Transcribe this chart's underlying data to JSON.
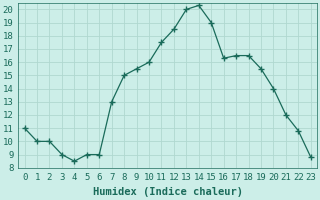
{
  "data_points": [
    [
      0,
      11
    ],
    [
      1,
      10
    ],
    [
      2,
      10
    ],
    [
      3,
      9
    ],
    [
      4,
      8.5
    ],
    [
      5,
      9
    ],
    [
      6,
      9
    ],
    [
      7,
      13
    ],
    [
      8,
      15
    ],
    [
      9,
      15.5
    ],
    [
      10,
      16
    ],
    [
      11,
      17.5
    ],
    [
      12,
      18.5
    ],
    [
      13,
      20
    ],
    [
      14,
      20.3
    ],
    [
      15,
      19
    ],
    [
      16,
      16.3
    ],
    [
      17,
      16.5
    ],
    [
      18,
      16.5
    ],
    [
      19,
      15.5
    ],
    [
      20,
      14
    ],
    [
      21,
      12
    ],
    [
      22,
      10.8
    ],
    [
      23,
      8.8
    ]
  ],
  "line_color": "#1a6b5a",
  "bg_color": "#cceee8",
  "grid_color": "#b0d8d0",
  "xlabel": "Humidex (Indice chaleur)",
  "xlim": [
    -0.5,
    23.5
  ],
  "ylim": [
    8,
    20.5
  ],
  "yticks": [
    8,
    9,
    10,
    11,
    12,
    13,
    14,
    15,
    16,
    17,
    18,
    19,
    20
  ],
  "xtick_labels": [
    "0",
    "1",
    "2",
    "3",
    "4",
    "5",
    "6",
    "7",
    "8",
    "9",
    "10",
    "11",
    "12",
    "13",
    "14",
    "15",
    "16",
    "17",
    "18",
    "19",
    "20",
    "21",
    "22",
    "23"
  ],
  "font_color": "#1a6b5a",
  "font_size": 6.5,
  "xlabel_fontsize": 7.5
}
